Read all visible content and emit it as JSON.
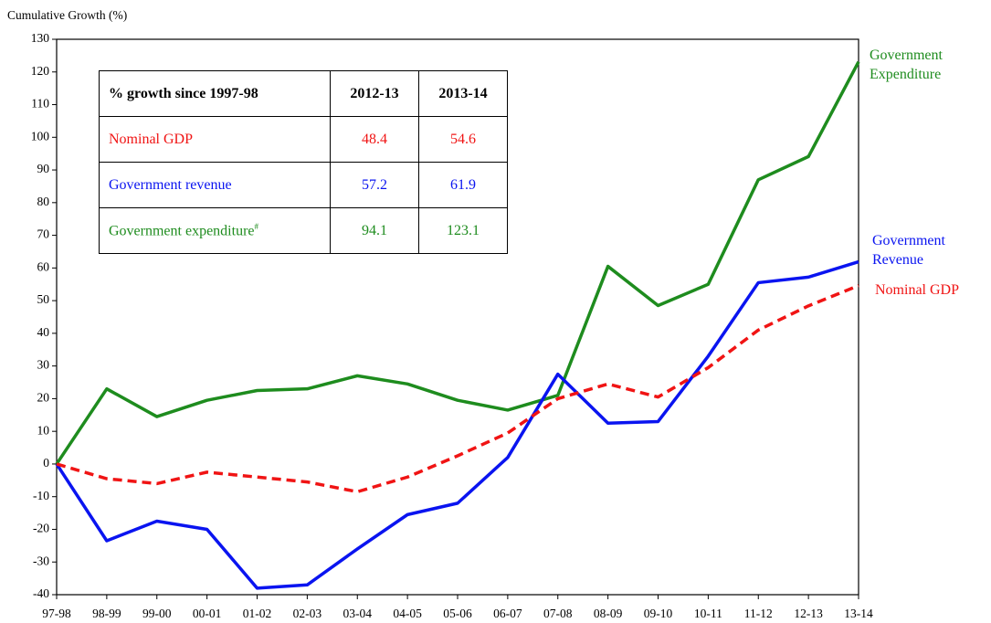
{
  "chart_data": {
    "type": "line",
    "y_label": "Cumulative Growth (%)",
    "categories": [
      "97-98",
      "98-99",
      "99-00",
      "00-01",
      "01-02",
      "02-03",
      "03-04",
      "04-05",
      "05-06",
      "06-07",
      "07-08",
      "08-09",
      "09-10",
      "10-11",
      "11-12",
      "12-13",
      "13-14"
    ],
    "series": [
      {
        "name": "Government Expenditure",
        "color": "#1e8c1e",
        "dash": false,
        "values": [
          0,
          23,
          14.5,
          19.5,
          22.5,
          23,
          27,
          24.5,
          19.5,
          16.5,
          21,
          60.5,
          48.5,
          55,
          87,
          94.1,
          123.1
        ]
      },
      {
        "name": "Government Revenue",
        "color": "#0a14f0",
        "dash": false,
        "values": [
          0,
          -23.5,
          -17.5,
          -20,
          -38,
          -37,
          -26,
          -15.5,
          -12,
          2,
          27.5,
          12.5,
          13,
          33,
          55.5,
          57.2,
          61.9
        ]
      },
      {
        "name": "Nominal GDP",
        "color": "#f01414",
        "dash": true,
        "values": [
          0,
          -4.5,
          -6,
          -2.5,
          -4,
          -5.5,
          -8.5,
          -4,
          2.5,
          9.5,
          20,
          24.5,
          20.5,
          29.5,
          41,
          48.4,
          54.6
        ]
      }
    ],
    "ylim": [
      -40,
      130
    ],
    "yticks": [
      -40,
      -30,
      -20,
      -10,
      0,
      10,
      20,
      30,
      40,
      50,
      60,
      70,
      80,
      90,
      100,
      110,
      120,
      130
    ],
    "grid": false,
    "table": {
      "header": [
        "% growth since 1997-98",
        "2012-13",
        "2013-14"
      ],
      "rows": [
        {
          "label": "Nominal GDP",
          "color": "#f01414",
          "values": [
            48.4,
            54.6
          ]
        },
        {
          "label": "Government revenue",
          "color": "#0a14f0",
          "values": [
            57.2,
            61.9
          ]
        },
        {
          "label": "Government expenditure",
          "marker": "#",
          "color": "#1e8c1e",
          "values": [
            94.1,
            123.1
          ]
        }
      ]
    }
  }
}
